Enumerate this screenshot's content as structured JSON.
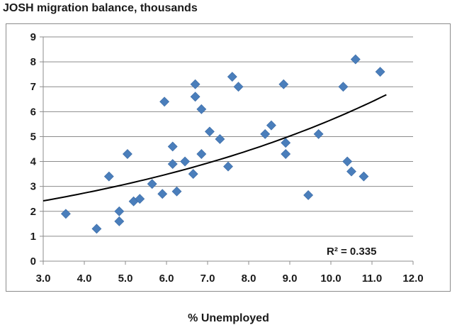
{
  "chart_data": {
    "type": "scatter",
    "title": "JOSH migration balance, thousands",
    "xlabel": "% Unemployed",
    "ylabel": "",
    "xlim": [
      3.0,
      12.0
    ],
    "ylim": [
      0,
      9
    ],
    "x_ticks": [
      "3.0",
      "4.0",
      "5.0",
      "6.0",
      "7.0",
      "8.0",
      "9.0",
      "10.0",
      "11.0",
      "12.0"
    ],
    "y_ticks": [
      "0",
      "1",
      "2",
      "3",
      "4",
      "5",
      "6",
      "7",
      "8",
      "9"
    ],
    "grid": true,
    "marker_color": "#4a7ebb",
    "trendline_color": "#000000",
    "series": [
      {
        "x": [
          3.55,
          4.3,
          4.6,
          4.85,
          4.85,
          5.05,
          5.2,
          5.35,
          5.65,
          5.9,
          5.95,
          6.15,
          6.15,
          6.25,
          6.45,
          6.65,
          6.7,
          6.7,
          6.85,
          6.85,
          7.05,
          7.3,
          7.5,
          7.6,
          7.75,
          8.4,
          8.55,
          8.85,
          8.9,
          8.9,
          9.45,
          9.7,
          10.3,
          10.4,
          10.5,
          10.6,
          10.8,
          11.2
        ],
        "y": [
          1.9,
          1.3,
          3.4,
          2.0,
          1.6,
          4.3,
          2.4,
          2.5,
          3.1,
          2.7,
          6.4,
          4.6,
          3.9,
          2.8,
          4.0,
          3.5,
          7.1,
          6.6,
          6.1,
          4.3,
          5.2,
          4.9,
          3.8,
          7.4,
          7.0,
          5.1,
          5.45,
          7.1,
          4.75,
          4.3,
          2.65,
          5.1,
          7.0,
          4.0,
          3.6,
          8.1,
          3.4,
          7.6
        ]
      }
    ],
    "trendline": {
      "type": "exponential",
      "x_range": [
        3.0,
        11.35
      ],
      "y_at_start": 2.42,
      "y_at_end": 6.68
    },
    "annotations": [
      {
        "text": "R² = 0.335"
      }
    ]
  }
}
